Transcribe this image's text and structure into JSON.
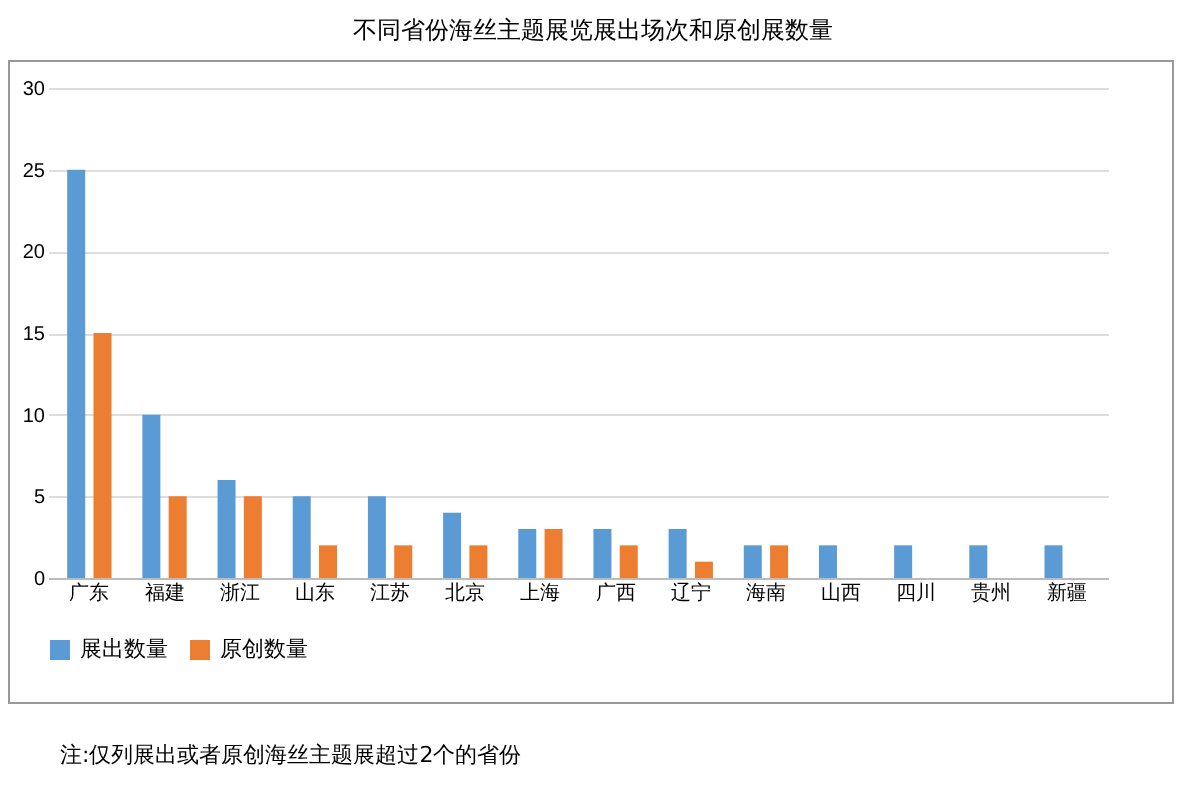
{
  "chart_data": {
    "type": "bar",
    "title": "不同省份海丝主题展览展出场次和原创展数量",
    "categories": [
      "广东",
      "福建",
      "浙江",
      "山东",
      "江苏",
      "北京",
      "上海",
      "广西",
      "辽宁",
      "海南",
      "山西",
      "四川",
      "贵州",
      "新疆"
    ],
    "series": [
      {
        "name": "展出数量",
        "color": "#5b9bd5",
        "values": [
          25,
          10,
          6,
          5,
          5,
          4,
          3,
          3,
          3,
          2,
          2,
          2,
          2,
          2
        ]
      },
      {
        "name": "原创数量",
        "color": "#ed7d31",
        "values": [
          15,
          5,
          5,
          2,
          2,
          2,
          3,
          2,
          1,
          2,
          null,
          null,
          null,
          null
        ]
      }
    ],
    "ylim": [
      0,
      30
    ],
    "yticks": [
      0,
      5,
      10,
      15,
      20,
      25,
      30
    ],
    "grid": "y",
    "legend": "bottom",
    "annotations": [
      "注:仅列展出或者原创海丝主题展超过2个的省份"
    ]
  }
}
